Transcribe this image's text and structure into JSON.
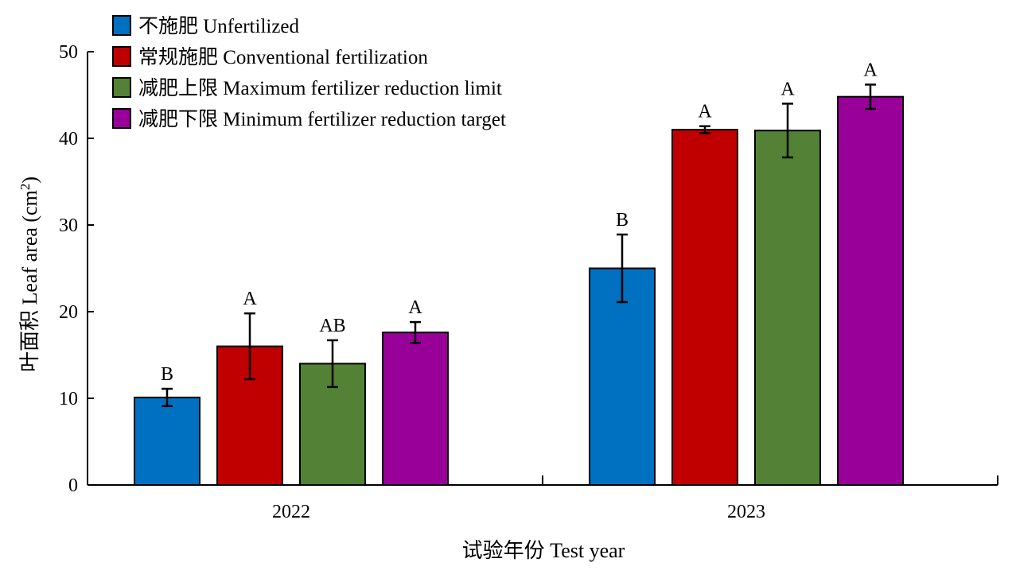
{
  "chart_data": {
    "type": "bar",
    "xlabel": "试验年份 Test year",
    "ylabel": "叶面积 Leaf area (cm",
    "ylabel_sup": "2",
    "ylabel_close": ")",
    "ylim": [
      0,
      50
    ],
    "yticks": [
      0,
      10,
      20,
      30,
      40,
      50
    ],
    "categories": [
      "2022",
      "2023"
    ],
    "legend_position": "top-left",
    "series": [
      {
        "name": "不施肥 Unfertilized",
        "color": "#0070C0",
        "values": [
          10.1,
          25.0
        ],
        "errors": [
          1.0,
          3.9
        ],
        "letters": [
          "B",
          "B"
        ]
      },
      {
        "name": "常规施肥 Conventional fertilization",
        "color": "#C00000",
        "values": [
          16.0,
          41.0
        ],
        "errors": [
          3.8,
          0.4
        ],
        "letters": [
          "A",
          "A"
        ]
      },
      {
        "name": "减肥上限 Maximum fertilizer reduction limit",
        "color": "#538135",
        "values": [
          14.0,
          40.9
        ],
        "errors": [
          2.7,
          3.1
        ],
        "letters": [
          "AB",
          "A"
        ]
      },
      {
        "name": "减肥下限 Minimum fertilizer reduction target",
        "color": "#990099",
        "values": [
          17.6,
          44.8
        ],
        "errors": [
          1.2,
          1.4
        ],
        "letters": [
          "A",
          "A"
        ]
      }
    ]
  }
}
